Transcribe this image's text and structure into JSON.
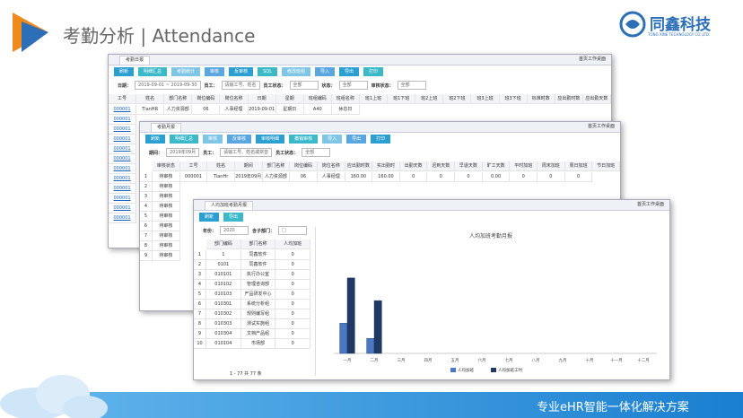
{
  "header": {
    "title": "考勤分析 | Attendance",
    "brand": "同鑫科技",
    "brand_sub": "TONG XINE TECHNOLOGY CO.,LTD."
  },
  "footer": {
    "slogan": "专业eHR智能一体化解决方案"
  },
  "windows": [
    {
      "tab": "考勤日报",
      "desktop": "首页工作桌面",
      "numbered": false,
      "buttons": [
        "刷新",
        "明细汇总",
        "考勤统计",
        "审核",
        "反审核",
        "SQL",
        "修改班组",
        "导入",
        "导出",
        "打印"
      ],
      "filters": [
        {
          "label": "日期：",
          "value": "2019-09-01 ~ 2019-09-30"
        },
        {
          "label": "员工：",
          "value": "请输工号、姓名"
        },
        {
          "label": "员工状态：",
          "value": "全部"
        },
        {
          "label": "状态：",
          "value": "全部"
        },
        {
          "label": "审核状态：",
          "value": "全部"
        }
      ],
      "columns": [
        "工号",
        "姓名",
        "部门名称",
        "岗位编码",
        "岗位名称",
        "日期",
        "星期",
        "班组编码",
        "班组名称",
        "班1上班",
        "班1下班",
        "班2上班",
        "班2下班",
        "班3上班",
        "班3下班",
        "标准时数",
        "应出勤时数",
        "应出勤天数"
      ],
      "rows": [
        [
          "000001",
          "TianHR",
          "人力资源部",
          "06",
          "人事经理",
          "2019-09-01",
          "星期日",
          "A40",
          "休息日"
        ],
        [
          "000001"
        ],
        [
          "000001"
        ],
        [
          "000001"
        ],
        [
          "000001"
        ],
        [
          "000001"
        ],
        [
          "000001"
        ],
        [
          "000001"
        ],
        [
          "000001"
        ],
        [
          "000001"
        ],
        [
          "000001"
        ],
        [
          "000001"
        ]
      ]
    },
    {
      "tab": "考勤月报",
      "desktop": "首页工作桌面",
      "numbered": true,
      "buttons": [
        "刷新",
        "明细汇总",
        "审核",
        "反审核",
        "审核明细",
        "撤销审核",
        "导入",
        "导出",
        "打印"
      ],
      "filters": [
        {
          "label": "期间：",
          "value": "2019年09月"
        },
        {
          "label": "员工：",
          "value": "请输工号、姓名或拼音"
        },
        {
          "label": "员工状态：",
          "value": "全部"
        }
      ],
      "columns": [
        "审核状态",
        "工号",
        "姓名",
        "期间",
        "部门名称",
        "岗位编码",
        "岗位名称",
        "应出勤时数",
        "实出勤时",
        "出勤天数",
        "迟到天数",
        "早退天数",
        "旷工天数",
        "平时加班",
        "周末加班",
        "周日加班",
        "节日加班"
      ],
      "rows": [
        [
          "1",
          "待审核",
          "000001",
          "TianHr",
          "2019年09月",
          "人力资源部",
          "06",
          "人事经理",
          "160.00",
          "160.00",
          "0",
          "0",
          "0",
          "0.00",
          "0",
          "0",
          "0"
        ],
        [
          "2",
          "待审核"
        ],
        [
          "3",
          "待审核"
        ],
        [
          "4",
          "待审核"
        ],
        [
          "5",
          "待审核"
        ],
        [
          "6",
          "待审核"
        ],
        [
          "7",
          "待审核"
        ],
        [
          "8",
          "待审核"
        ],
        [
          "9",
          "待审核"
        ]
      ]
    },
    {
      "tab": "人均加班考勤月报",
      "desktop": "首页工作桌面",
      "numbered": true,
      "buttons": [
        "刷新",
        "导出"
      ],
      "filters": [
        {
          "label": "年份：",
          "value": "2020"
        },
        {
          "label": "含子部门：",
          "value": "□"
        }
      ],
      "columns": [
        "部门编码",
        "部门名称",
        "人均加班"
      ],
      "rows": [
        [
          "1",
          "1",
          "同鑫软件",
          "0"
        ],
        [
          "2",
          "0101",
          "同鑫软件",
          "0"
        ],
        [
          "3",
          "010101",
          "执行办公室",
          "0"
        ],
        [
          "4",
          "010102",
          "管理咨询部",
          "0"
        ],
        [
          "5",
          "010103",
          "产品研发中心",
          "0"
        ],
        [
          "6",
          "010301",
          "系统分析组",
          "0"
        ],
        [
          "7",
          "010302",
          "规则编写组",
          "0"
        ],
        [
          "8",
          "010303",
          "测试实施组",
          "0"
        ],
        [
          "9",
          "010304",
          "文档产品组",
          "0"
        ],
        [
          "10",
          "010104",
          "市场部",
          "0"
        ]
      ],
      "pager": "1 - 77 共 77 条"
    }
  ],
  "chart_data": {
    "type": "bar",
    "title": "人均加班考勤月报",
    "categories": [
      "一月",
      "二月",
      "三月",
      "四月",
      "五月",
      "六月",
      "七月",
      "八月",
      "九月",
      "十月",
      "十一月",
      "十二月"
    ],
    "series": [
      {
        "name": "人均加班",
        "color": "#4a78c2",
        "values": [
          2,
          1,
          0,
          0,
          0,
          0,
          0,
          0,
          0,
          0,
          0,
          0
        ]
      },
      {
        "name": "人均加班工时",
        "color": "#1f3864",
        "values": [
          5,
          3.5,
          0,
          0,
          0,
          0,
          0,
          0,
          0,
          0,
          0,
          0
        ]
      }
    ],
    "ylim": [
      0,
      6
    ]
  }
}
